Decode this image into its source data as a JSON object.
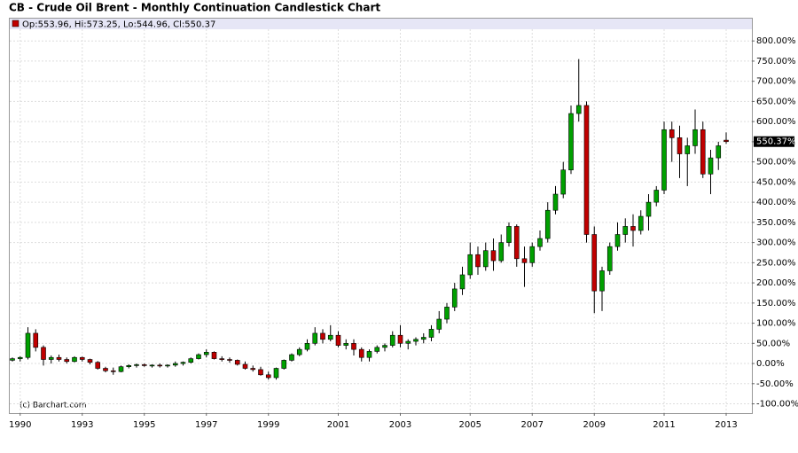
{
  "chart_data": {
    "type": "candlestick",
    "title": "CB - Crude Oil Brent - Monthly Continuation Candlestick Chart",
    "legend_text": "Op:553.96, Hi:573.25, Lo:544.96, Cl:550.37",
    "annotation": "(c) Barchart.com",
    "last_value_label": "550.37%",
    "up_color": "#00a000",
    "down_color": "#c00000",
    "grid": true,
    "categories": [
      null,
      "1990",
      null,
      null,
      null,
      null,
      null,
      null,
      null,
      "1993",
      null,
      null,
      null,
      null,
      null,
      null,
      null,
      "1995",
      null,
      null,
      null,
      null,
      null,
      null,
      null,
      "1997",
      null,
      null,
      null,
      null,
      null,
      null,
      null,
      "1999",
      null,
      null,
      null,
      null,
      null,
      null,
      null,
      null,
      "2001",
      null,
      null,
      null,
      null,
      null,
      null,
      null,
      "2003",
      null,
      null,
      null,
      null,
      null,
      null,
      null,
      null,
      "2005",
      null,
      null,
      null,
      null,
      null,
      null,
      null,
      "2007",
      null,
      null,
      null,
      null,
      null,
      null,
      null,
      "2009",
      null,
      null,
      null,
      null,
      null,
      null,
      null,
      null,
      "2011",
      null,
      null,
      null,
      null,
      null,
      null,
      null,
      "2013"
    ],
    "open": [
      8,
      12,
      15,
      75,
      40,
      10,
      15,
      10,
      5,
      15,
      10,
      3,
      -12,
      -18,
      -20,
      -8,
      -5,
      -3,
      -5,
      -4,
      -6,
      -4,
      0,
      3,
      12,
      22,
      28,
      12,
      10,
      8,
      -2,
      -12,
      -15,
      -28,
      -35,
      -12,
      8,
      22,
      35,
      50,
      75,
      60,
      70,
      45,
      50,
      35,
      15,
      30,
      40,
      45,
      70,
      50,
      55,
      60,
      65,
      85,
      110,
      140,
      185,
      220,
      270,
      240,
      280,
      255,
      300,
      340,
      260,
      250,
      290,
      310,
      380,
      420,
      480,
      620,
      640,
      320,
      180,
      230,
      290,
      320,
      340,
      330,
      365,
      400,
      430,
      580,
      560,
      520,
      540,
      580,
      470,
      510,
      553.96
    ],
    "high": [
      15,
      18,
      90,
      85,
      45,
      20,
      22,
      15,
      18,
      17,
      12,
      6,
      -8,
      -10,
      -5,
      -2,
      0,
      0,
      -2,
      0,
      -2,
      5,
      5,
      15,
      25,
      35,
      30,
      18,
      15,
      10,
      5,
      -5,
      -8,
      -20,
      -10,
      10,
      25,
      40,
      60,
      90,
      85,
      95,
      80,
      60,
      60,
      40,
      35,
      45,
      50,
      80,
      95,
      60,
      65,
      75,
      95,
      130,
      150,
      200,
      240,
      300,
      290,
      300,
      310,
      320,
      350,
      345,
      290,
      300,
      330,
      400,
      440,
      500,
      640,
      755,
      650,
      340,
      240,
      300,
      350,
      360,
      370,
      380,
      420,
      440,
      600,
      600,
      590,
      560,
      630,
      600,
      530,
      550,
      573.25
    ],
    "low": [
      5,
      5,
      10,
      30,
      -5,
      0,
      5,
      0,
      3,
      5,
      -2,
      -15,
      -22,
      -28,
      -22,
      -12,
      -10,
      -8,
      -10,
      -10,
      -10,
      -8,
      -5,
      0,
      10,
      15,
      10,
      5,
      2,
      -5,
      -15,
      -20,
      -30,
      -40,
      -40,
      -15,
      5,
      18,
      30,
      45,
      50,
      55,
      40,
      35,
      20,
      5,
      5,
      25,
      30,
      40,
      40,
      35,
      45,
      50,
      55,
      75,
      100,
      130,
      170,
      210,
      220,
      230,
      230,
      250,
      290,
      240,
      190,
      240,
      280,
      300,
      370,
      410,
      470,
      600,
      300,
      125,
      130,
      220,
      280,
      300,
      290,
      320,
      330,
      390,
      420,
      500,
      460,
      440,
      520,
      460,
      420,
      480,
      544.96
    ],
    "close": [
      12,
      15,
      75,
      40,
      10,
      15,
      10,
      5,
      15,
      10,
      3,
      -12,
      -18,
      -20,
      -8,
      -5,
      -3,
      -5,
      -4,
      -6,
      -4,
      0,
      3,
      12,
      22,
      28,
      12,
      10,
      8,
      -2,
      -12,
      -15,
      -28,
      -35,
      -12,
      8,
      22,
      35,
      50,
      75,
      60,
      70,
      45,
      50,
      35,
      15,
      30,
      40,
      45,
      70,
      50,
      55,
      60,
      65,
      85,
      110,
      140,
      185,
      220,
      270,
      240,
      280,
      255,
      300,
      340,
      260,
      250,
      290,
      310,
      380,
      420,
      480,
      620,
      640,
      320,
      180,
      230,
      290,
      320,
      340,
      330,
      365,
      400,
      430,
      580,
      560,
      520,
      540,
      580,
      470,
      510,
      540,
      550.37
    ],
    "ylim": [
      -123,
      829
    ],
    "yticks": [
      {
        "value": -100,
        "label": "-100.00%"
      },
      {
        "value": -50,
        "label": "-50.00%"
      },
      {
        "value": 0,
        "label": "0.00%"
      },
      {
        "value": 50,
        "label": "50.00%"
      },
      {
        "value": 100,
        "label": "100.00%"
      },
      {
        "value": 150,
        "label": "150.00%"
      },
      {
        "value": 200,
        "label": "200.00%"
      },
      {
        "value": 250,
        "label": "250.00%"
      },
      {
        "value": 300,
        "label": "300.00%"
      },
      {
        "value": 350,
        "label": "350.00%"
      },
      {
        "value": 400,
        "label": "400.00%"
      },
      {
        "value": 450,
        "label": "450.00%"
      },
      {
        "value": 500,
        "label": "500.00%"
      },
      {
        "value": 550,
        "label": "550.00%"
      },
      {
        "value": 600,
        "label": "600.00%"
      },
      {
        "value": 650,
        "label": "650.00%"
      },
      {
        "value": 700,
        "label": "700.00%"
      },
      {
        "value": 750,
        "label": "750.00%"
      },
      {
        "value": 800,
        "label": "800.00%"
      }
    ]
  }
}
